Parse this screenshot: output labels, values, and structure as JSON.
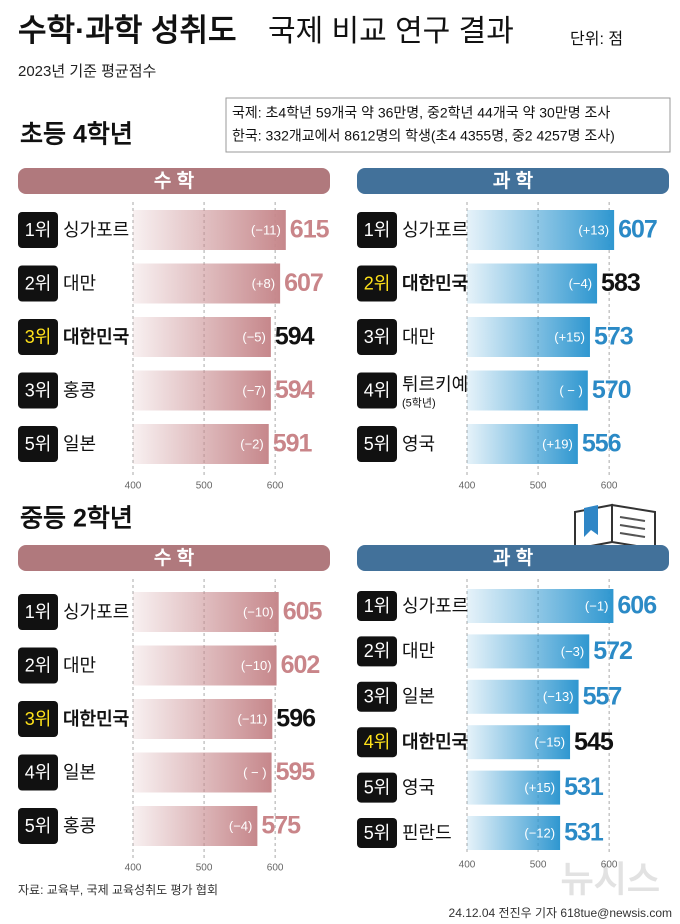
{
  "header": {
    "title_bold": "수학·과학 성취도",
    "title_rest": "국제 비교 연구 결과",
    "unit": "단위: 점",
    "subtitle": "2023년 기준 평균점수",
    "notes": [
      "국제: 초4학년 59개국 약 36만명, 중2학년 44개국 약 30만명 조사",
      "한국: 332개교에서 8612명의 학생(초4 4355명, 중2 4257명 조사)"
    ]
  },
  "sections": [
    "초등 4학년",
    "중등 2학년"
  ],
  "chart_data": [
    {
      "type": "bar",
      "orientation": "horizontal",
      "title": "수 학",
      "color": "#c6878b",
      "header_color": "#b0797d",
      "value_color": "#c98589",
      "ranks": [
        "1위",
        "2위",
        "3위",
        "3위",
        "5위"
      ],
      "categories": [
        "싱가포르",
        "대만",
        "대한민국",
        "홍콩",
        "일본"
      ],
      "values": [
        615,
        607,
        594,
        594,
        591
      ],
      "change_labels": [
        "(−11)",
        "(+8)",
        "(−5)",
        "(−7)",
        "(−2)"
      ],
      "highlight": [
        false,
        false,
        true,
        false,
        false
      ],
      "xlim": [
        400,
        680
      ],
      "xticks": [
        400,
        500,
        600
      ],
      "grid": true
    },
    {
      "type": "bar",
      "orientation": "horizontal",
      "title": "과 학",
      "color": "#2f97d0",
      "header_color": "#42719a",
      "value_color": "#2b8ac6",
      "ranks": [
        "1위",
        "2위",
        "3위",
        "4위",
        "5위"
      ],
      "categories": [
        "싱가포르",
        "대한민국",
        "대만",
        "튀르키예",
        "영국"
      ],
      "category_notes": [
        null,
        null,
        null,
        "(5학년)",
        null
      ],
      "values": [
        607,
        583,
        573,
        570,
        556
      ],
      "change_labels": [
        "(+13)",
        "(−4)",
        "(+15)",
        "( − )",
        "(+19)"
      ],
      "highlight": [
        false,
        true,
        false,
        false,
        false
      ],
      "xlim": [
        400,
        680
      ],
      "xticks": [
        400,
        500,
        600
      ],
      "grid": true
    },
    {
      "type": "bar",
      "orientation": "horizontal",
      "title": "수 학",
      "color": "#c6878b",
      "header_color": "#b0797d",
      "value_color": "#c98589",
      "ranks": [
        "1위",
        "2위",
        "3위",
        "4위",
        "5위"
      ],
      "categories": [
        "싱가포르",
        "대만",
        "대한민국",
        "일본",
        "홍콩"
      ],
      "values": [
        605,
        602,
        596,
        595,
        575
      ],
      "change_labels": [
        "(−10)",
        "(−10)",
        "(−11)",
        "( − )",
        "(−4)"
      ],
      "highlight": [
        false,
        false,
        true,
        false,
        false
      ],
      "xlim": [
        400,
        680
      ],
      "xticks": [
        400,
        500,
        600
      ],
      "grid": true
    },
    {
      "type": "bar",
      "orientation": "horizontal",
      "title": "과 학",
      "color": "#2f97d0",
      "header_color": "#42719a",
      "value_color": "#2b8ac6",
      "ranks": [
        "1위",
        "2위",
        "3위",
        "4위",
        "5위",
        "5위"
      ],
      "categories": [
        "싱가포르",
        "대만",
        "일본",
        "대한민국",
        "영국",
        "핀란드"
      ],
      "values": [
        606,
        572,
        557,
        545,
        531,
        531
      ],
      "change_labels": [
        "(−1)",
        "(−3)",
        "(−13)",
        "(−15)",
        "(+15)",
        "(−12)"
      ],
      "highlight": [
        false,
        false,
        false,
        true,
        false,
        false
      ],
      "xlim": [
        400,
        680
      ],
      "xticks": [
        400,
        500,
        600
      ],
      "grid": true
    }
  ],
  "source": "자료: 교육부, 국제 교육성취도 평가 협회",
  "credit": "24.12.04 전진우 기자 618tue@newsis.com",
  "watermark": "뉴시스"
}
